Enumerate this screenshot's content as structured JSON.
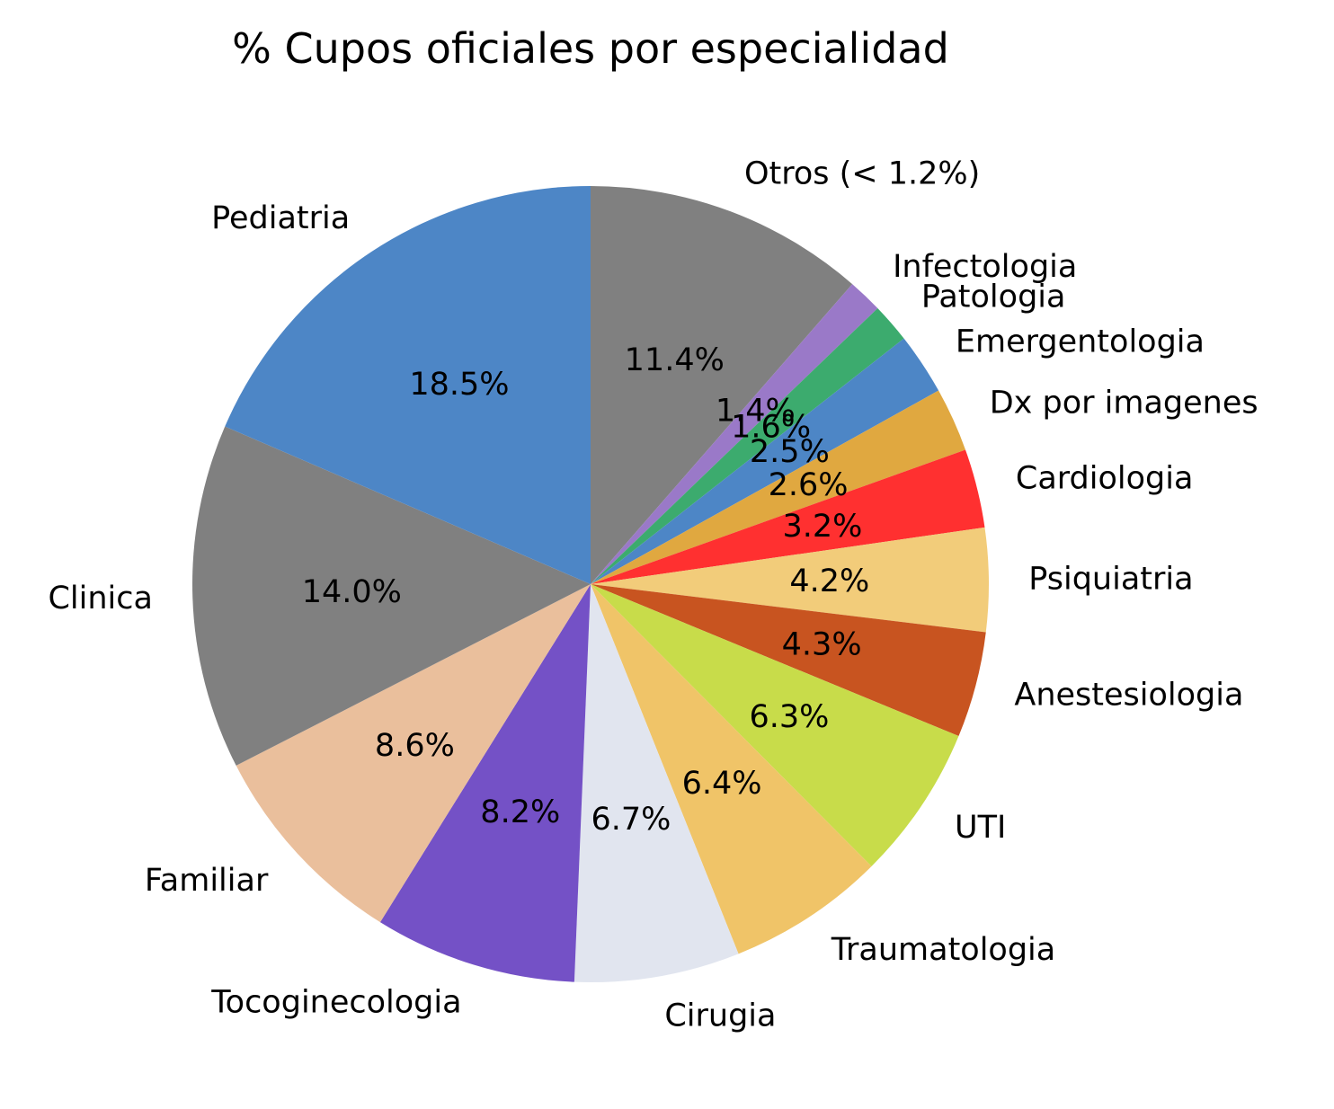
{
  "chart_data": {
    "type": "pie",
    "title": "% Cupos oficiales por especialidad",
    "start_angle_deg": 90,
    "direction": "clockwise",
    "slices": [
      {
        "label": "Otros (< 1.2%)",
        "value": 11.4,
        "pct_label": "11.4%",
        "color": "#808080"
      },
      {
        "label": "Infectologia",
        "value": 1.4,
        "pct_label": "1.4%",
        "color": "#9a79c8"
      },
      {
        "label": "Patologia",
        "value": 1.6,
        "pct_label": "1.6%",
        "color": "#3cab6e"
      },
      {
        "label": "Emergentologia",
        "value": 2.5,
        "pct_label": "2.5%",
        "color": "#4d86c6"
      },
      {
        "label": "Dx por imagenes",
        "value": 2.6,
        "pct_label": "2.6%",
        "color": "#e0a840"
      },
      {
        "label": "Cardiologia",
        "value": 3.2,
        "pct_label": "3.2%",
        "color": "#ff3030"
      },
      {
        "label": "Psiquiatria",
        "value": 4.2,
        "pct_label": "4.2%",
        "color": "#f2cc7a"
      },
      {
        "label": "Anestesiologia",
        "value": 4.3,
        "pct_label": "4.3%",
        "color": "#c85420"
      },
      {
        "label": "UTI",
        "value": 6.3,
        "pct_label": "6.3%",
        "color": "#c8dc4a"
      },
      {
        "label": "Traumatologia",
        "value": 6.4,
        "pct_label": "6.4%",
        "color": "#f0c468"
      },
      {
        "label": "Cirugia",
        "value": 6.7,
        "pct_label": "6.7%",
        "color": "#e1e5ef"
      },
      {
        "label": "Tocoginecologia",
        "value": 8.2,
        "pct_label": "8.2%",
        "color": "#7451c6"
      },
      {
        "label": "Familiar",
        "value": 8.6,
        "pct_label": "8.6%",
        "color": "#eabf9c"
      },
      {
        "label": "Clinica",
        "value": 14.0,
        "pct_label": "14.0%",
        "color": "#808080"
      },
      {
        "label": "Pediatria",
        "value": 18.5,
        "pct_label": "18.5%",
        "color": "#4d86c6"
      }
    ]
  }
}
